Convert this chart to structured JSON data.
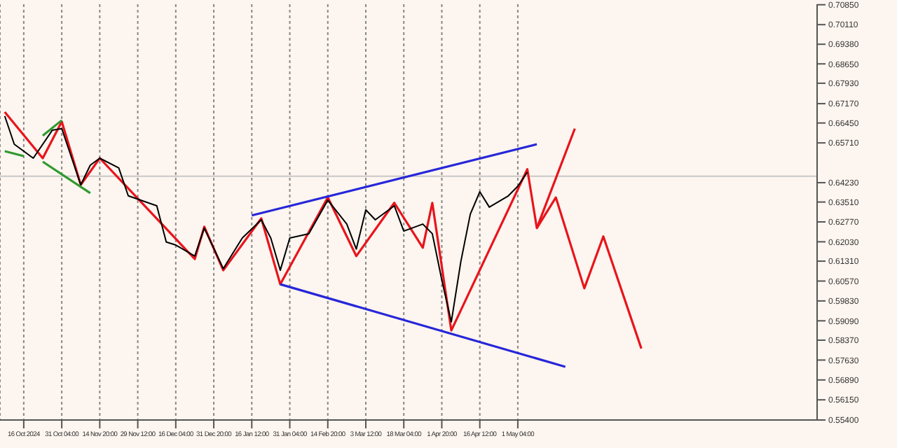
{
  "chart_data": {
    "type": "line",
    "marker": "none",
    "grid": "x",
    "categories": [
      null,
      null,
      "16 Oct 2024",
      null,
      null,
      null,
      "31 Oct 04:00",
      null,
      null,
      null,
      "14 Nov 20:00",
      null,
      null,
      null,
      "29 Nov 12:00",
      null,
      null,
      null,
      "16 Dec 04:00",
      null,
      null,
      null,
      "31 Dec 20:00",
      null,
      null,
      null,
      "16 Jan 12:00",
      null,
      null,
      null,
      "31 Jan 04:00",
      null,
      null,
      null,
      "14 Feb 20:00",
      null,
      null,
      null,
      "3 Mar 12:00",
      null,
      null,
      null,
      "18 Mar 04:00",
      null,
      null,
      null,
      "1 Apr 20:00",
      null,
      null,
      null,
      "16 Apr 12:00",
      null,
      null,
      null,
      "1 May 04:00",
      null,
      null,
      null,
      null,
      null,
      null,
      null,
      null,
      null,
      null,
      null,
      null,
      null,
      null,
      null,
      null,
      null,
      null,
      null,
      null,
      null,
      null,
      null,
      null,
      null,
      null,
      null,
      null,
      null,
      null,
      null
    ],
    "ylim": [
      0.554,
      0.7087
    ],
    "yticks": [
      {
        "value": 0.554,
        "label": "0.55400"
      },
      {
        "value": 0.5615,
        "label": "0.56150"
      },
      {
        "value": 0.5689,
        "label": "0.56890"
      },
      {
        "value": 0.5763,
        "label": "0.57630"
      },
      {
        "value": 0.5837,
        "label": "0.58370"
      },
      {
        "value": 0.5909,
        "label": "0.59090"
      },
      {
        "value": 0.5983,
        "label": "0.59830"
      },
      {
        "value": 0.6057,
        "label": "0.60570"
      },
      {
        "value": 0.6131,
        "label": "0.61310"
      },
      {
        "value": 0.6203,
        "label": "0.62030"
      },
      {
        "value": 0.6277,
        "label": "0.62770"
      },
      {
        "value": 0.6351,
        "label": "0.63510"
      },
      {
        "value": 0.6423,
        "label": "0.64230"
      },
      {
        "value": 0.6571,
        "label": "0.65710"
      },
      {
        "value": 0.6645,
        "label": "0.66450"
      },
      {
        "value": 0.6717,
        "label": "0.67170"
      },
      {
        "value": 0.6793,
        "label": "0.67930"
      },
      {
        "value": 0.6865,
        "label": "0.68650"
      },
      {
        "value": 0.6938,
        "label": "0.69380"
      },
      {
        "value": 0.7011,
        "label": "0.70110"
      },
      {
        "value": 0.7085,
        "label": "0.70850"
      }
    ],
    "ref_lines": [
      {
        "axis": "y",
        "value": 0.6447,
        "color": "#c8c8c8"
      }
    ],
    "series": [
      {
        "color": "#000000",
        "values": [
          0.6671,
          0.6566,
          null,
          0.6514,
          null,
          0.6618,
          0.6624,
          null,
          0.6415,
          0.6488,
          0.6514,
          null,
          0.6478,
          0.6374,
          null,
          null,
          0.6337,
          0.6202,
          0.6191,
          null,
          0.615,
          0.6254,
          null,
          0.6103,
          null,
          0.6217,
          null,
          0.6285,
          0.6217,
          0.6097,
          0.6217,
          null,
          0.6233,
          null,
          0.6358,
          null,
          0.6269,
          0.6176,
          0.6322,
          0.6285,
          null,
          0.6337,
          0.6243,
          null,
          0.6269,
          0.6233,
          0.6061,
          0.5905,
          0.6129,
          0.6306,
          0.6389,
          0.6332,
          null,
          0.6374,
          0.641,
          0.6462,
          null,
          null,
          null,
          null,
          null,
          null,
          null,
          null,
          null,
          null,
          null,
          null,
          null,
          null,
          null,
          null,
          null,
          null,
          null,
          null,
          null,
          null,
          null,
          null,
          null,
          null,
          null,
          null,
          null,
          null
        ]
      },
      {
        "color": "#e8141c",
        "values": [
          0.6686,
          null,
          null,
          null,
          0.6514,
          null,
          0.665,
          null,
          0.6415,
          null,
          0.6514,
          null,
          null,
          null,
          null,
          null,
          null,
          null,
          null,
          null,
          0.6139,
          0.6259,
          null,
          0.6097,
          null,
          null,
          null,
          0.629,
          null,
          0.6045,
          null,
          null,
          null,
          null,
          0.6368,
          null,
          null,
          0.615,
          null,
          null,
          null,
          0.6348,
          null,
          null,
          0.6181,
          0.6348,
          null,
          0.5873,
          null,
          null,
          null,
          null,
          null,
          null,
          null,
          0.6473,
          0.6254,
          null,
          0.6368,
          null,
          null,
          0.603,
          null,
          0.6223,
          null,
          null,
          null,
          0.5806,
          null,
          null,
          null,
          null,
          null,
          null,
          null,
          null,
          null,
          null,
          null,
          null,
          null,
          null,
          null,
          null,
          null,
          null
        ]
      },
      {
        "color": "#e8141c",
        "values": [
          null,
          null,
          null,
          null,
          null,
          null,
          null,
          null,
          null,
          null,
          null,
          null,
          null,
          null,
          null,
          null,
          null,
          null,
          null,
          null,
          null,
          null,
          null,
          null,
          null,
          null,
          null,
          null,
          null,
          null,
          null,
          null,
          null,
          null,
          null,
          null,
          null,
          null,
          null,
          null,
          null,
          null,
          null,
          null,
          null,
          null,
          null,
          null,
          null,
          null,
          null,
          null,
          null,
          null,
          null,
          null,
          0.6254,
          null,
          null,
          null,
          0.6624,
          null,
          null,
          null,
          null,
          null,
          null,
          null,
          null,
          null,
          null,
          null,
          null,
          null,
          null,
          null,
          null,
          null,
          null,
          null,
          null,
          null,
          null,
          null,
          null,
          null
        ]
      },
      {
        "color": "#2626d9",
        "values": [
          null,
          null,
          null,
          null,
          null,
          null,
          null,
          null,
          null,
          null,
          null,
          null,
          null,
          null,
          null,
          null,
          null,
          null,
          null,
          null,
          null,
          null,
          null,
          null,
          null,
          null,
          0.6301,
          null,
          null,
          null,
          null,
          null,
          null,
          null,
          null,
          null,
          null,
          null,
          null,
          null,
          null,
          null,
          null,
          null,
          null,
          null,
          null,
          null,
          null,
          null,
          null,
          null,
          null,
          null,
          null,
          null,
          0.6566,
          null,
          null,
          null,
          null,
          null,
          null,
          null,
          null,
          null,
          null,
          null,
          null,
          null,
          null,
          null,
          null,
          null,
          null,
          null,
          null,
          null,
          null,
          null,
          null,
          null,
          null,
          null,
          null,
          null
        ]
      },
      {
        "color": "#2626d9",
        "values": [
          null,
          null,
          null,
          null,
          null,
          null,
          null,
          null,
          null,
          null,
          null,
          null,
          null,
          null,
          null,
          null,
          null,
          null,
          null,
          null,
          null,
          null,
          null,
          null,
          null,
          null,
          null,
          null,
          null,
          0.6045,
          null,
          null,
          null,
          null,
          null,
          null,
          null,
          null,
          null,
          null,
          null,
          null,
          null,
          null,
          null,
          null,
          null,
          null,
          null,
          null,
          null,
          null,
          null,
          null,
          null,
          null,
          null,
          null,
          null,
          0.5738,
          null,
          null,
          null,
          null,
          null,
          null,
          null,
          null,
          null,
          null,
          null,
          null,
          null,
          null,
          null,
          null,
          null,
          null,
          null,
          null,
          null,
          null,
          null,
          null,
          null,
          null
        ]
      },
      {
        "color": "#2e9a2e",
        "values": [
          null,
          null,
          null,
          null,
          0.6598,
          null,
          0.6655,
          null,
          null,
          null,
          null,
          null,
          null,
          null,
          null,
          null,
          null,
          null,
          null,
          null,
          null,
          null,
          null,
          null,
          null,
          null,
          null,
          null,
          null,
          null,
          null,
          null,
          null,
          null,
          null,
          null,
          null,
          null,
          null,
          null,
          null,
          null,
          null,
          null,
          null,
          null,
          null,
          null,
          null,
          null,
          null,
          null,
          null,
          null,
          null,
          null,
          null,
          null,
          null,
          null,
          null,
          null,
          null,
          null,
          null,
          null,
          null,
          null,
          null,
          null,
          null,
          null,
          null,
          null,
          null,
          null,
          null,
          null,
          null,
          null,
          null,
          null,
          null,
          null,
          null,
          null
        ]
      },
      {
        "color": "#2e9a2e",
        "values": [
          0.654,
          null,
          0.6522,
          null,
          null,
          null,
          null,
          null,
          null,
          null,
          null,
          null,
          null,
          null,
          null,
          null,
          null,
          null,
          null,
          null,
          null,
          null,
          null,
          null,
          null,
          null,
          null,
          null,
          null,
          null,
          null,
          null,
          null,
          null,
          null,
          null,
          null,
          null,
          null,
          null,
          null,
          null,
          null,
          null,
          null,
          null,
          null,
          null,
          null,
          null,
          null,
          null,
          null,
          null,
          null,
          null,
          null,
          null,
          null,
          null,
          null,
          null,
          null,
          null,
          null,
          null,
          null,
          null,
          null,
          null,
          null,
          null,
          null,
          null,
          null,
          null,
          null,
          null,
          null,
          null,
          null,
          null,
          null,
          null,
          null,
          null
        ]
      },
      {
        "color": "#2e9a2e",
        "values": [
          null,
          null,
          null,
          null,
          0.6501,
          null,
          null,
          null,
          null,
          0.6384,
          null,
          null,
          null,
          null,
          null,
          null,
          null,
          null,
          null,
          null,
          null,
          null,
          null,
          null,
          null,
          null,
          null,
          null,
          null,
          null,
          null,
          null,
          null,
          null,
          null,
          null,
          null,
          null,
          null,
          null,
          null,
          null,
          null,
          null,
          null,
          null,
          null,
          null,
          null,
          null,
          null,
          null,
          null,
          null,
          null,
          null,
          null,
          null,
          null,
          null,
          null,
          null,
          null,
          null,
          null,
          null,
          null,
          null,
          null,
          null,
          null,
          null,
          null,
          null,
          null,
          null,
          null,
          null,
          null,
          null,
          null,
          null,
          null,
          null,
          null,
          null
        ]
      }
    ]
  }
}
